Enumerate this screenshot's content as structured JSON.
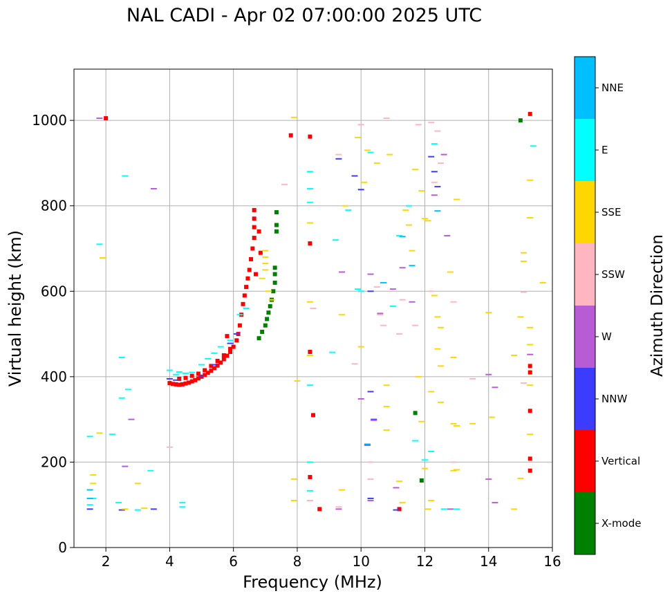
{
  "chart_data": {
    "type": "scatter",
    "title": "NAL CADI - Apr 02 07:00:00 2025 UTC",
    "xlabel": "Frequency (MHz)",
    "ylabel": "Virtual height (km)",
    "xlim": [
      1.0,
      16.0
    ],
    "ylim": [
      0,
      1120
    ],
    "xticks": [
      2,
      4,
      6,
      8,
      10,
      12,
      14,
      16
    ],
    "yticks": [
      0,
      200,
      400,
      600,
      800,
      1000
    ],
    "grid": true,
    "colorbar": {
      "label": "Azimuth Direction",
      "categories": [
        {
          "name": "X-mode",
          "color": "#008000"
        },
        {
          "name": "Vertical",
          "color": "#ff0000"
        },
        {
          "name": "NNW",
          "color": "#3c3cff"
        },
        {
          "name": "W",
          "color": "#b85cd6"
        },
        {
          "name": "SSW",
          "color": "#ffb6c1"
        },
        {
          "name": "SSE",
          "color": "#ffd700"
        },
        {
          "name": "E",
          "color": "#00ffff"
        },
        {
          "name": "NNE",
          "color": "#00bfff"
        }
      ]
    },
    "series": [
      {
        "name": "Vertical",
        "color": "#ff0000",
        "points": [
          [
            4.0,
            385
          ],
          [
            4.1,
            383
          ],
          [
            4.2,
            382
          ],
          [
            4.3,
            381
          ],
          [
            4.4,
            382
          ],
          [
            4.5,
            384
          ],
          [
            4.6,
            386
          ],
          [
            4.7,
            389
          ],
          [
            4.8,
            392
          ],
          [
            4.9,
            396
          ],
          [
            5.0,
            400
          ],
          [
            5.1,
            404
          ],
          [
            5.2,
            409
          ],
          [
            5.3,
            414
          ],
          [
            5.4,
            420
          ],
          [
            5.5,
            426
          ],
          [
            5.6,
            433
          ],
          [
            5.7,
            441
          ],
          [
            5.8,
            449
          ],
          [
            5.9,
            458
          ],
          [
            6.0,
            470
          ],
          [
            6.1,
            485
          ],
          [
            6.15,
            500
          ],
          [
            6.2,
            520
          ],
          [
            6.25,
            545
          ],
          [
            6.3,
            570
          ],
          [
            6.35,
            590
          ],
          [
            6.4,
            610
          ],
          [
            6.45,
            630
          ],
          [
            6.5,
            650
          ],
          [
            6.55,
            675
          ],
          [
            6.6,
            700
          ],
          [
            6.65,
            725
          ],
          [
            6.65,
            750
          ],
          [
            6.65,
            770
          ],
          [
            6.65,
            790
          ],
          [
            4.3,
            395
          ],
          [
            4.5,
            397
          ],
          [
            4.7,
            402
          ],
          [
            4.9,
            407
          ],
          [
            5.1,
            415
          ],
          [
            5.3,
            425
          ],
          [
            5.5,
            437
          ],
          [
            5.7,
            450
          ],
          [
            5.9,
            465
          ],
          [
            6.8,
            740
          ],
          [
            6.85,
            690
          ],
          [
            6.7,
            640
          ],
          [
            2.0,
            1005
          ],
          [
            8.4,
            962
          ],
          [
            8.4,
            712
          ],
          [
            8.4,
            458
          ],
          [
            8.5,
            310
          ],
          [
            8.4,
            165
          ],
          [
            8.7,
            90
          ],
          [
            11.2,
            90
          ],
          [
            15.3,
            1015
          ],
          [
            15.3,
            425
          ],
          [
            15.3,
            410
          ],
          [
            15.3,
            320
          ],
          [
            15.3,
            208
          ],
          [
            15.3,
            180
          ],
          [
            7.8,
            965
          ],
          [
            5.8,
            495
          ]
        ]
      },
      {
        "name": "X-mode",
        "color": "#008000",
        "points": [
          [
            6.8,
            490
          ],
          [
            6.9,
            505
          ],
          [
            7.0,
            520
          ],
          [
            7.05,
            535
          ],
          [
            7.1,
            550
          ],
          [
            7.15,
            565
          ],
          [
            7.2,
            580
          ],
          [
            7.25,
            600
          ],
          [
            7.3,
            620
          ],
          [
            7.3,
            640
          ],
          [
            7.3,
            655
          ],
          [
            7.35,
            740
          ],
          [
            7.35,
            755
          ],
          [
            7.35,
            785
          ],
          [
            15.0,
            1000
          ],
          [
            11.9,
            157
          ],
          [
            11.7,
            315
          ]
        ]
      },
      {
        "name": "NNW",
        "color": "#3c3cff",
        "points": [
          [
            4.0,
            395
          ],
          [
            4.2,
            392
          ],
          [
            5.0,
            402
          ],
          [
            5.4,
            428
          ],
          [
            5.9,
            478
          ],
          [
            6.1,
            500
          ],
          [
            9.3,
            910
          ],
          [
            9.8,
            870
          ],
          [
            10.0,
            838
          ],
          [
            10.3,
            600
          ],
          [
            10.3,
            365
          ],
          [
            10.4,
            300
          ],
          [
            10.2,
            240
          ],
          [
            10.3,
            115
          ],
          [
            12.2,
            915
          ],
          [
            12.3,
            880
          ],
          [
            12.4,
            845
          ],
          [
            11.1,
            88
          ],
          [
            3.5,
            90
          ],
          [
            2.5,
            88
          ],
          [
            1.5,
            90
          ]
        ]
      },
      {
        "name": "W",
        "color": "#b85cd6",
        "points": [
          [
            3.5,
            840
          ],
          [
            1.8,
            1005
          ],
          [
            9.4,
            645
          ],
          [
            10.3,
            640
          ],
          [
            10.6,
            548
          ],
          [
            11.0,
            605
          ],
          [
            11.3,
            655
          ],
          [
            11.6,
            575
          ],
          [
            12.3,
            825
          ],
          [
            12.6,
            920
          ],
          [
            12.7,
            730
          ],
          [
            14.0,
            405
          ],
          [
            14.2,
            375
          ],
          [
            14.0,
            160
          ],
          [
            14.2,
            105
          ],
          [
            15.3,
            452
          ],
          [
            10.4,
            298
          ],
          [
            10.0,
            348
          ],
          [
            11.1,
            140
          ],
          [
            10.3,
            110
          ],
          [
            9.3,
            90
          ],
          [
            12.8,
            90
          ],
          [
            2.6,
            190
          ],
          [
            2.8,
            300
          ]
        ]
      },
      {
        "name": "SSW",
        "color": "#ffb6c1",
        "points": [
          [
            7.6,
            850
          ],
          [
            9.3,
            920
          ],
          [
            10.0,
            990
          ],
          [
            10.8,
            1005
          ],
          [
            11.8,
            990
          ],
          [
            12.2,
            995
          ],
          [
            12.4,
            975
          ],
          [
            12.5,
            900
          ],
          [
            12.3,
            855
          ],
          [
            10.5,
            610
          ],
          [
            10.6,
            545
          ],
          [
            10.7,
            520
          ],
          [
            11.3,
            580
          ],
          [
            11.7,
            520
          ],
          [
            12.2,
            600
          ],
          [
            12.9,
            575
          ],
          [
            13.5,
            395
          ],
          [
            15.1,
            598
          ],
          [
            15.1,
            385
          ],
          [
            12.9,
            200
          ],
          [
            10.3,
            200
          ],
          [
            10.3,
            160
          ],
          [
            9.3,
            95
          ],
          [
            8.4,
            110
          ],
          [
            4.0,
            235
          ],
          [
            9.8,
            430
          ],
          [
            11.2,
            500
          ],
          [
            8.5,
            560
          ]
        ]
      },
      {
        "name": "SSE",
        "color": "#ffd700",
        "points": [
          [
            7.0,
            695
          ],
          [
            7.0,
            680
          ],
          [
            7.0,
            665
          ],
          [
            7.0,
            650
          ],
          [
            6.9,
            630
          ],
          [
            7.1,
            600
          ],
          [
            7.2,
            580
          ],
          [
            7.9,
            1007
          ],
          [
            8.4,
            760
          ],
          [
            8.4,
            575
          ],
          [
            8.4,
            450
          ],
          [
            8.0,
            390
          ],
          [
            7.9,
            160
          ],
          [
            7.9,
            110
          ],
          [
            9.5,
            800
          ],
          [
            9.9,
            960
          ],
          [
            10.1,
            855
          ],
          [
            10.2,
            930
          ],
          [
            10.5,
            900
          ],
          [
            10.9,
            920
          ],
          [
            11.4,
            790
          ],
          [
            11.5,
            755
          ],
          [
            11.6,
            695
          ],
          [
            11.7,
            885
          ],
          [
            11.9,
            835
          ],
          [
            12.0,
            770
          ],
          [
            12.1,
            765
          ],
          [
            12.3,
            590
          ],
          [
            12.4,
            540
          ],
          [
            12.5,
            515
          ],
          [
            12.4,
            465
          ],
          [
            12.5,
            425
          ],
          [
            12.8,
            645
          ],
          [
            13.0,
            815
          ],
          [
            12.9,
            445
          ],
          [
            12.5,
            340
          ],
          [
            12.9,
            290
          ],
          [
            13.0,
            285
          ],
          [
            13.5,
            290
          ],
          [
            12.9,
            180
          ],
          [
            13.0,
            182
          ],
          [
            15.3,
            860
          ],
          [
            15.3,
            772
          ],
          [
            15.3,
            515
          ],
          [
            15.3,
            475
          ],
          [
            15.3,
            380
          ],
          [
            15.3,
            265
          ],
          [
            15.1,
            690
          ],
          [
            15.1,
            670
          ],
          [
            15.0,
            540
          ],
          [
            14.8,
            450
          ],
          [
            14.8,
            90
          ],
          [
            15.0,
            162
          ],
          [
            14.0,
            550
          ],
          [
            14.1,
            305
          ],
          [
            15.7,
            620
          ],
          [
            9.4,
            545
          ],
          [
            9.4,
            135
          ],
          [
            10.0,
            470
          ],
          [
            10.8,
            380
          ],
          [
            10.8,
            330
          ],
          [
            10.8,
            275
          ],
          [
            11.2,
            155
          ],
          [
            11.3,
            105
          ],
          [
            11.8,
            400
          ],
          [
            11.9,
            295
          ],
          [
            12.2,
            365
          ],
          [
            12.0,
            185
          ],
          [
            12.2,
            110
          ],
          [
            12.1,
            90
          ],
          [
            1.6,
            170
          ],
          [
            1.6,
            150
          ],
          [
            1.8,
            268
          ],
          [
            2.6,
            90
          ],
          [
            3.2,
            92
          ],
          [
            3.0,
            150
          ],
          [
            1.9,
            678
          ]
        ]
      },
      {
        "name": "E",
        "color": "#00ffff",
        "points": [
          [
            4.0,
            415
          ],
          [
            4.3,
            411
          ],
          [
            4.5,
            408
          ],
          [
            4.2,
            405
          ],
          [
            4.7,
            410
          ],
          [
            5.0,
            428
          ],
          [
            5.2,
            442
          ],
          [
            5.4,
            455
          ],
          [
            5.6,
            470
          ],
          [
            5.9,
            485
          ],
          [
            6.2,
            545
          ],
          [
            6.4,
            560
          ],
          [
            8.4,
            880
          ],
          [
            8.4,
            840
          ],
          [
            8.4,
            808
          ],
          [
            8.4,
            380
          ],
          [
            8.4,
            200
          ],
          [
            8.4,
            133
          ],
          [
            9.2,
            720
          ],
          [
            9.6,
            790
          ],
          [
            9.9,
            605
          ],
          [
            10.3,
            925
          ],
          [
            11.2,
            730
          ],
          [
            11.5,
            800
          ],
          [
            11.7,
            250
          ],
          [
            12.2,
            225
          ],
          [
            12.3,
            945
          ],
          [
            12.0,
            205
          ],
          [
            12.6,
            90
          ],
          [
            13.0,
            90
          ],
          [
            15.4,
            940
          ],
          [
            9.1,
            457
          ],
          [
            10.0,
            600
          ],
          [
            11.0,
            565
          ],
          [
            1.5,
            100
          ],
          [
            1.6,
            115
          ],
          [
            1.5,
            260
          ],
          [
            2.2,
            265
          ],
          [
            2.4,
            105
          ],
          [
            2.5,
            350
          ],
          [
            2.7,
            370
          ],
          [
            3.4,
            180
          ],
          [
            4.4,
            95
          ],
          [
            4.4,
            105
          ],
          [
            1.8,
            710
          ],
          [
            2.6,
            870
          ],
          [
            2.5,
            445
          ],
          [
            3.0,
            88
          ]
        ]
      },
      {
        "name": "NNE",
        "color": "#00bfff",
        "points": [
          [
            11.3,
            728
          ],
          [
            12.4,
            788
          ],
          [
            10.2,
            242
          ],
          [
            1.5,
            135
          ],
          [
            1.5,
            115
          ],
          [
            10.7,
            620
          ],
          [
            11.6,
            660
          ]
        ]
      }
    ]
  }
}
